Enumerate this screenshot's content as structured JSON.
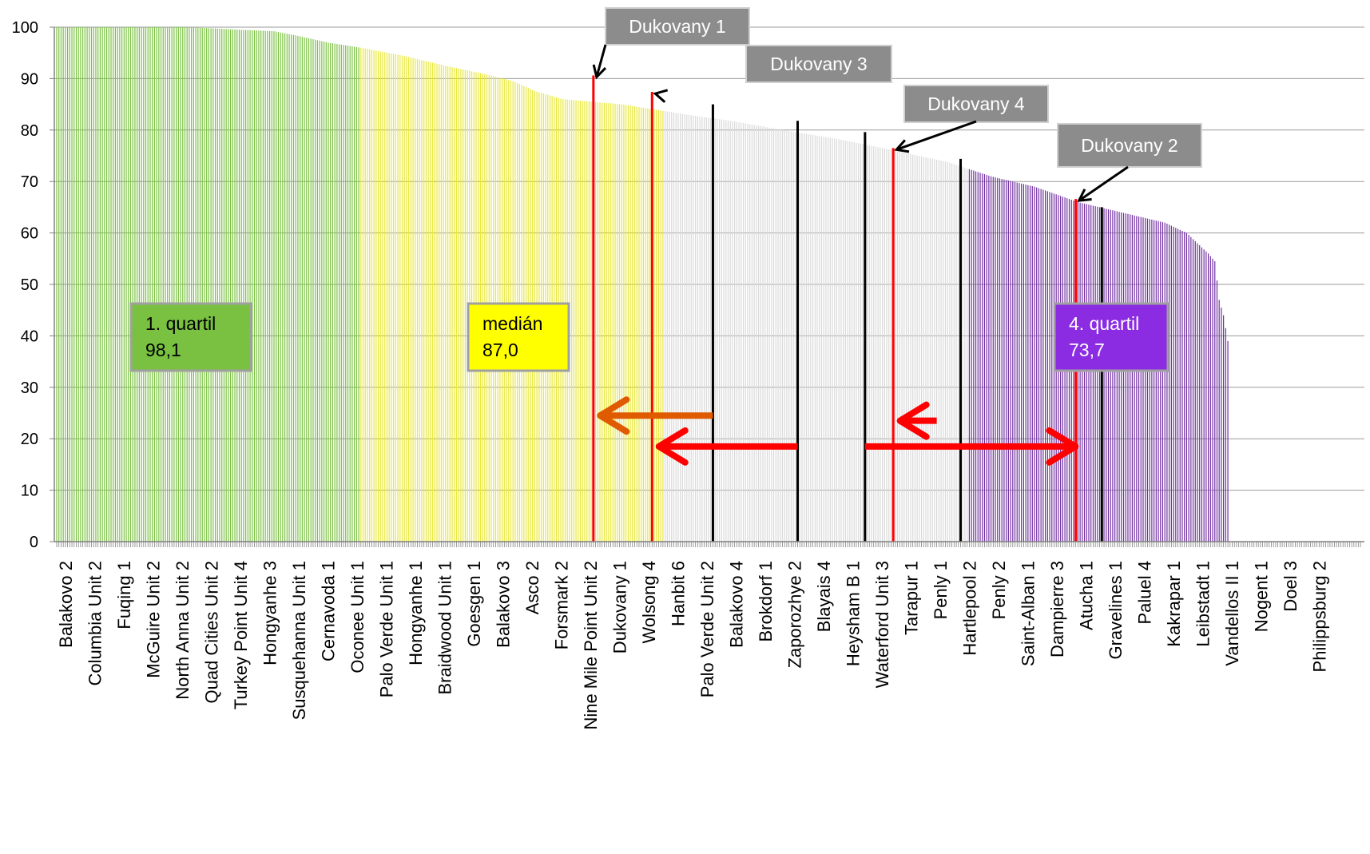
{
  "chart_data": {
    "type": "bar",
    "title": "",
    "xlabel": "",
    "ylabel": "",
    "ylim": [
      0,
      100
    ],
    "yticks": [
      0,
      10,
      20,
      30,
      40,
      50,
      60,
      70,
      80,
      90,
      100
    ],
    "grid": true,
    "categories": [
      "Balakovo 2",
      "Columbia Unit 2",
      "Fuqing 1",
      "McGuire Unit 2",
      "North Anna Unit 2",
      "Quad Cities Unit 2",
      "Turkey Point Unit 4",
      "Hongyanhe 3",
      "Susquehanna Unit 1",
      "Cernavoda 1",
      "Oconee Unit 1",
      "Palo Verde Unit 1",
      "Hongyanhe 1",
      "Braidwood Unit 1",
      "Goesgen 1",
      "Balakovo 3",
      "Asco 2",
      "Forsmark 2",
      "Nine Mile Point Unit 2",
      "Dukovany 1",
      "Wolsong 4",
      "Hanbit 6",
      "Palo Verde Unit 2",
      "Balakovo 4",
      "Brokdorf 1",
      "Zaporozhye 2",
      "Blayais 4",
      "Heysham B 1",
      "Waterford Unit 3",
      "Tarapur 1",
      "Penly 1",
      "Hartlepool 2",
      "Penly 2",
      "Saint-Alban 1",
      "Dampierre 3",
      "Atucha 1",
      "Gravelines 1",
      "Paluel 4",
      "Kakrapar 1",
      "Leibstadt 1",
      "Vandellos II 1",
      "Nogent 1",
      "Doel 3",
      "Philippsburg 2"
    ],
    "curve_points": [
      [
        0,
        100
      ],
      [
        30,
        100
      ],
      [
        60,
        100
      ],
      [
        80,
        99.6
      ],
      [
        100,
        99.2
      ],
      [
        110,
        98.4
      ],
      [
        125,
        97.0
      ],
      [
        140,
        96.0
      ],
      [
        160,
        94.4
      ],
      [
        180,
        92.4
      ],
      [
        200,
        90.6
      ],
      [
        210,
        89.5
      ],
      [
        220,
        87.6
      ],
      [
        233,
        86.0
      ],
      [
        260,
        85.0
      ],
      [
        290,
        83.0
      ],
      [
        310,
        81.8
      ],
      [
        340,
        79.6
      ],
      [
        360,
        78.2
      ],
      [
        380,
        76.5
      ],
      [
        400,
        74.7
      ],
      [
        410,
        73.8
      ],
      [
        430,
        71.0
      ],
      [
        440,
        70.0
      ],
      [
        450,
        69.0
      ],
      [
        460,
        67.5
      ],
      [
        470,
        66.0
      ],
      [
        480,
        65.0
      ],
      [
        500,
        63.0
      ],
      [
        510,
        62.0
      ],
      [
        520,
        60.0
      ],
      [
        525,
        58.0
      ],
      [
        530,
        56.0
      ],
      [
        533,
        54.5
      ],
      [
        535,
        47.0
      ],
      [
        537,
        44.0
      ],
      [
        539,
        39.0
      ]
    ],
    "total_units": 540,
    "quartile_zones": [
      {
        "start": 0,
        "end": 140,
        "color": "#7ac142"
      },
      {
        "start": 140,
        "end": 280,
        "color": "#e8e83a"
      },
      {
        "start": 280,
        "end": 420,
        "color": "#d9d9d9"
      },
      {
        "start": 420,
        "end": 540,
        "color": "#7030a0"
      }
    ],
    "highlighted_units": [
      {
        "index": 247,
        "name": "Dukovany 1",
        "value": 90.6,
        "color": "#ff0000"
      },
      {
        "index": 274,
        "name": "Dukovany 3",
        "value": 87.4,
        "color": "#ff0000"
      },
      {
        "index": 385,
        "name": "Dukovany 4",
        "value": 76.5,
        "color": "#ff0000"
      },
      {
        "index": 469,
        "name": "Dukovany 2",
        "value": 66.6,
        "color": "#ff0000"
      }
    ],
    "reference_units": [
      {
        "index": 302,
        "value": 85.0
      },
      {
        "index": 341,
        "value": 81.8
      },
      {
        "index": 372,
        "value": 79.6
      },
      {
        "index": 416,
        "value": 74.4
      },
      {
        "index": 481,
        "value": 65.0
      }
    ],
    "arrows": [
      {
        "from_index": 302,
        "to_index": 249,
        "value": 24.5,
        "color": "#e05a00"
      },
      {
        "from_index": 341,
        "to_index": 276,
        "value": 18.5,
        "color": "#ff0000"
      },
      {
        "from_index": 372,
        "to_index": 470,
        "value": 18.5,
        "color": "#ff0000"
      },
      {
        "from_index": 405,
        "to_index": 387,
        "value": 23.5,
        "color": "#ff0000"
      }
    ],
    "annotations": [
      {
        "text": "Dukovany 1",
        "target_index": 247,
        "target_value": 90.6
      },
      {
        "text": "Dukovany 3",
        "target_index": 274,
        "target_value": 87.4
      },
      {
        "text": "Dukovany 4",
        "target_index": 385,
        "target_value": 76.5
      },
      {
        "text": "Dukovany 2",
        "target_index": 469,
        "target_value": 66.6
      }
    ],
    "legend_boxes": [
      {
        "line1": "1. quartil",
        "line2": "98,1",
        "fill": "#7ac142",
        "text_color": "#000000"
      },
      {
        "line1": "medián",
        "line2": "87,0",
        "fill": "#ffff00",
        "text_color": "#000000"
      },
      {
        "line1": "4. quartil",
        "line2": "73,7",
        "fill": "#8b2be2",
        "text_color": "#ffffff"
      }
    ]
  }
}
